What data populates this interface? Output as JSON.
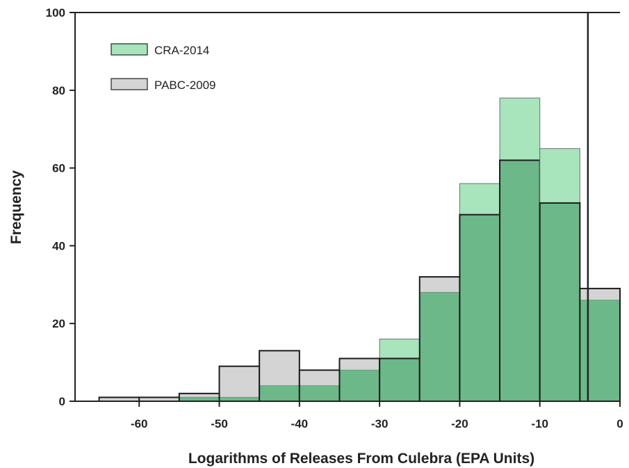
{
  "chart_data": {
    "type": "bar",
    "xlabel": "Logarithms of Releases From Culebra (EPA Units)",
    "ylabel": "Frequency",
    "xlim": [
      -68,
      0
    ],
    "ylim": [
      0,
      100
    ],
    "xticks": [
      -60,
      -50,
      -40,
      -30,
      -20,
      -10,
      0
    ],
    "yticks": [
      0,
      20,
      40,
      60,
      80,
      100
    ],
    "bin_edges": [
      -65,
      -60,
      -55,
      -50,
      -45,
      -40,
      -35,
      -30,
      -25,
      -20,
      -15,
      -10,
      -5,
      0
    ],
    "series": [
      {
        "name": "PABC-2009",
        "color": "#d4d4d4",
        "values": [
          1,
          1,
          2,
          9,
          13,
          8,
          11,
          11,
          32,
          48,
          62,
          51,
          29
        ]
      },
      {
        "name": "CRA-2014",
        "color": "#a8e4bc",
        "values": [
          0,
          0,
          1,
          1,
          4,
          4,
          8,
          16,
          28,
          56,
          78,
          65,
          26
        ]
      }
    ],
    "overlap_color": "#6cb889",
    "reference_line_x": -4,
    "legend_position": "top-left"
  }
}
